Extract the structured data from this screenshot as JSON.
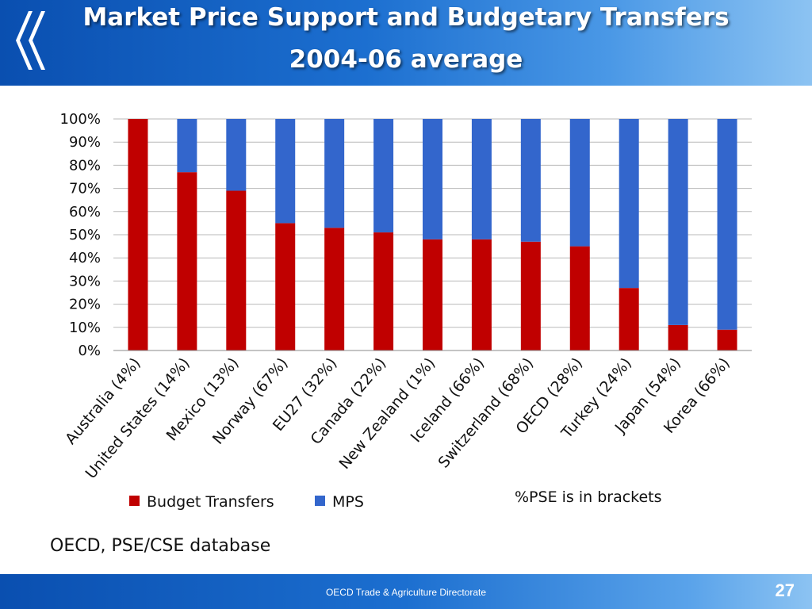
{
  "slide": {
    "title_line1": "Market Price Support and Budgetary Transfers",
    "title_line2": "2004-06 average",
    "note": "%PSE is in brackets",
    "source": "OECD, PSE/CSE database",
    "footer": "OECD Trade & Agriculture Directorate",
    "page_number": "27"
  },
  "chart_data": {
    "type": "bar",
    "stacked": true,
    "categories": [
      "Australia (4%)",
      "United States (14%)",
      "Mexico (13%)",
      "Norway (67%)",
      "EU27 (32%)",
      "Canada (22%)",
      "New Zealand (1%)",
      "Iceland (66%)",
      "Switzerland (68%)",
      "OECD (28%)",
      "Turkey (24%)",
      "Japan (54%)",
      "Korea (66%)"
    ],
    "series": [
      {
        "name": "Budget Transfers",
        "color": "#c00000",
        "values": [
          100,
          77,
          69,
          55,
          53,
          51,
          48,
          48,
          47,
          45,
          27,
          11,
          9
        ]
      },
      {
        "name": "MPS",
        "color": "#3366cc",
        "values": [
          0,
          23,
          31,
          45,
          47,
          49,
          52,
          52,
          53,
          55,
          73,
          89,
          91
        ]
      }
    ],
    "yticks": [
      "0%",
      "10%",
      "20%",
      "30%",
      "40%",
      "50%",
      "60%",
      "70%",
      "80%",
      "90%",
      "100%"
    ],
    "ylim": [
      0,
      100
    ],
    "grid": true,
    "legend_position": "bottom-left"
  }
}
